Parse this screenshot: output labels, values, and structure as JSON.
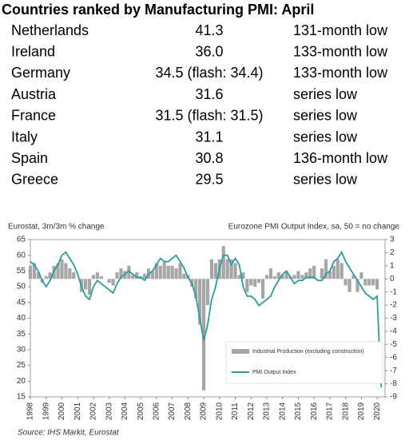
{
  "table": {
    "title": "Countries ranked by Manufacturing PMI: April",
    "rows": [
      [
        "Netherlands",
        "41.3",
        "131-month low"
      ],
      [
        "Ireland",
        "36.0",
        "133-month low"
      ],
      [
        "Germany",
        "34.5 (flash: 34.4)",
        "133-month low"
      ],
      [
        "Austria",
        "31.6",
        "series low"
      ],
      [
        "France",
        "31.5 (flash: 31.5)",
        "series low"
      ],
      [
        "Italy",
        "31.1",
        "series low"
      ],
      [
        "Spain",
        "30.8",
        "136-month low"
      ],
      [
        "Greece",
        "29.5",
        "series low"
      ]
    ]
  },
  "chart_data": {
    "type": "combo",
    "left_label": "Eurostat, 3m/3m % change",
    "right_label": "Eurozone PMI Output Index, sa, 50 = no change",
    "source": "Source: IHS Markit, Eurostat",
    "x": [
      1998,
      1998.25,
      1998.5,
      1998.75,
      1999,
      1999.25,
      1999.5,
      1999.75,
      2000,
      2000.25,
      2000.5,
      2000.75,
      2001,
      2001.25,
      2001.5,
      2001.75,
      2002,
      2002.25,
      2002.5,
      2002.75,
      2003,
      2003.25,
      2003.5,
      2003.75,
      2004,
      2004.25,
      2004.5,
      2004.75,
      2005,
      2005.25,
      2005.5,
      2005.75,
      2006,
      2006.25,
      2006.5,
      2006.75,
      2007,
      2007.25,
      2007.5,
      2007.75,
      2008,
      2008.25,
      2008.5,
      2008.75,
      2009,
      2009.25,
      2009.5,
      2009.75,
      2010,
      2010.25,
      2010.5,
      2010.75,
      2011,
      2011.25,
      2011.5,
      2011.75,
      2012,
      2012.25,
      2012.5,
      2012.75,
      2013,
      2013.25,
      2013.5,
      2013.75,
      2014,
      2014.25,
      2014.5,
      2014.75,
      2015,
      2015.25,
      2015.5,
      2015.75,
      2016,
      2016.25,
      2016.5,
      2016.75,
      2017,
      2017.25,
      2017.5,
      2017.75,
      2018,
      2018.25,
      2018.5,
      2018.75,
      2019,
      2019.25,
      2019.5,
      2019.75,
      2020,
      2020.25
    ],
    "series": [
      {
        "name": "Industrial Production (excluding construction)",
        "type": "bar",
        "axis": "y2",
        "color": "#a6a6a6",
        "values": [
          1,
          1.2,
          0.5,
          -0.3,
          0.2,
          0.5,
          1,
          1.2,
          1.5,
          1.2,
          0.8,
          0.5,
          0,
          -1,
          -0.8,
          -1.2,
          0.3,
          0.5,
          0.2,
          0,
          -0.3,
          -0.5,
          0.5,
          0.8,
          0.6,
          1,
          0.3,
          0.5,
          0.2,
          0.4,
          0.8,
          0.6,
          1.2,
          1,
          1.3,
          1,
          1,
          0.8,
          1.2,
          0.4,
          0.3,
          -0.6,
          -1.5,
          -3.5,
          -8.5,
          -2,
          1.5,
          1.2,
          1.5,
          2.5,
          1.5,
          1.5,
          1.2,
          0.3,
          0.5,
          -1,
          -0.5,
          -0.6,
          -0.3,
          -1.5,
          0.3,
          0.8,
          0.2,
          0.5,
          0.3,
          0.5,
          0.2,
          0.3,
          0.6,
          0.3,
          0.5,
          0.8,
          1,
          0,
          0.8,
          1.5,
          0.6,
          1,
          1.5,
          1.2,
          -0.5,
          -1,
          0.3,
          -1,
          0.5,
          -0.5,
          -0.5,
          -0.5,
          -0.8,
          null
        ]
      },
      {
        "name": "PMI Output Index",
        "type": "line",
        "color": "#2a9d9d",
        "values": [
          58,
          57,
          55,
          52,
          50,
          52,
          55,
          57,
          60,
          61,
          59,
          57,
          54,
          50,
          47,
          46,
          50,
          52,
          51,
          50,
          49,
          48,
          51,
          53,
          54,
          55,
          54,
          53,
          53,
          52,
          54,
          55,
          57,
          59,
          58,
          58,
          59,
          60,
          58,
          56,
          53,
          51,
          47,
          40,
          33,
          38,
          46,
          50,
          56,
          60,
          60,
          57,
          59,
          57,
          50,
          47,
          47,
          46,
          44,
          45,
          46,
          47,
          50,
          52,
          54,
          55,
          53,
          51,
          52,
          52,
          53,
          53,
          53,
          52,
          52,
          54,
          55,
          58,
          59,
          61,
          58,
          56,
          54,
          52,
          50,
          48,
          47,
          46,
          47,
          18
        ]
      }
    ],
    "xlim": [
      1998,
      2020.5
    ],
    "xticks": [
      1998,
      1999,
      2000,
      2001,
      2002,
      2003,
      2004,
      2005,
      2006,
      2007,
      2008,
      2009,
      2010,
      2011,
      2012,
      2013,
      2014,
      2015,
      2016,
      2017,
      2018,
      2019,
      2020
    ],
    "ylim": [
      15,
      65
    ],
    "yticks": [
      15,
      20,
      25,
      30,
      35,
      40,
      45,
      50,
      55,
      60,
      65
    ],
    "y2lim": [
      -9,
      3
    ],
    "y2ticks": [
      -9,
      -8,
      -7,
      -6,
      -5,
      -4,
      -3,
      -2,
      -1,
      0,
      1,
      2,
      3
    ]
  }
}
